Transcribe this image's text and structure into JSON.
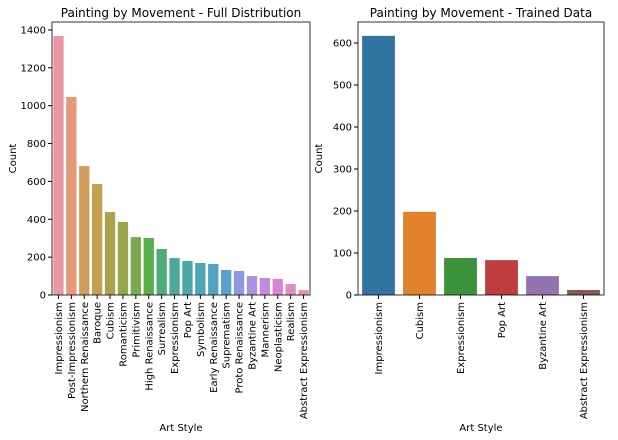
{
  "chart_data": [
    {
      "type": "bar",
      "title": "Painting by Movement - Full Distribution",
      "x_label": "Art Style",
      "y_label": "Count",
      "categories": [
        "Impressionism",
        "Post-Impressionism",
        "Northern Renaissance",
        "Baroque",
        "Cubism",
        "Romanticism",
        "Primitivism",
        "High Renaissance",
        "Surrealism",
        "Expressionism",
        "Pop Art",
        "Symbolism",
        "Early Renaissance",
        "Suprematism",
        "Proto Renaissance",
        "Byzantine Art",
        "Mannerism",
        "Neoplasticism",
        "Realism",
        "Abstract Expressionism"
      ],
      "values": [
        1368,
        1046,
        681,
        586,
        438,
        386,
        306,
        301,
        243,
        195,
        180,
        169,
        164,
        132,
        127,
        100,
        90,
        85,
        58,
        26
      ],
      "colors": [
        "#ea96a3",
        "#e5987a",
        "#d49d5c",
        "#c2a04f",
        "#aba24d",
        "#96a74c",
        "#7aab4c",
        "#56b04c",
        "#4cad7b",
        "#4ba997",
        "#4ca7a6",
        "#4ea5b3",
        "#50a3c1",
        "#5aa0d3",
        "#8d98e0",
        "#aa90e0",
        "#c389e0",
        "#d985d6",
        "#e28dc1",
        "#e891b1"
      ],
      "ylim": [
        0,
        1442
      ],
      "yticks": [
        0,
        200,
        400,
        600,
        800,
        1000,
        1200,
        1400
      ]
    },
    {
      "type": "bar",
      "title": "Painting by Movement - Trained Data",
      "x_label": "Art Style",
      "y_label": "Count",
      "categories": [
        "Impressionism",
        "Cubism",
        "Expressionism",
        "Pop Art",
        "Byzantine Art",
        "Abstract Expressionism"
      ],
      "values": [
        617,
        198,
        88,
        83,
        45,
        12
      ],
      "colors": [
        "#3274a1",
        "#e1812c",
        "#3a923a",
        "#c03d3e",
        "#9372b2",
        "#845b53"
      ],
      "ylim": [
        0,
        650
      ],
      "yticks": [
        0,
        100,
        200,
        300,
        400,
        500,
        600
      ]
    }
  ]
}
